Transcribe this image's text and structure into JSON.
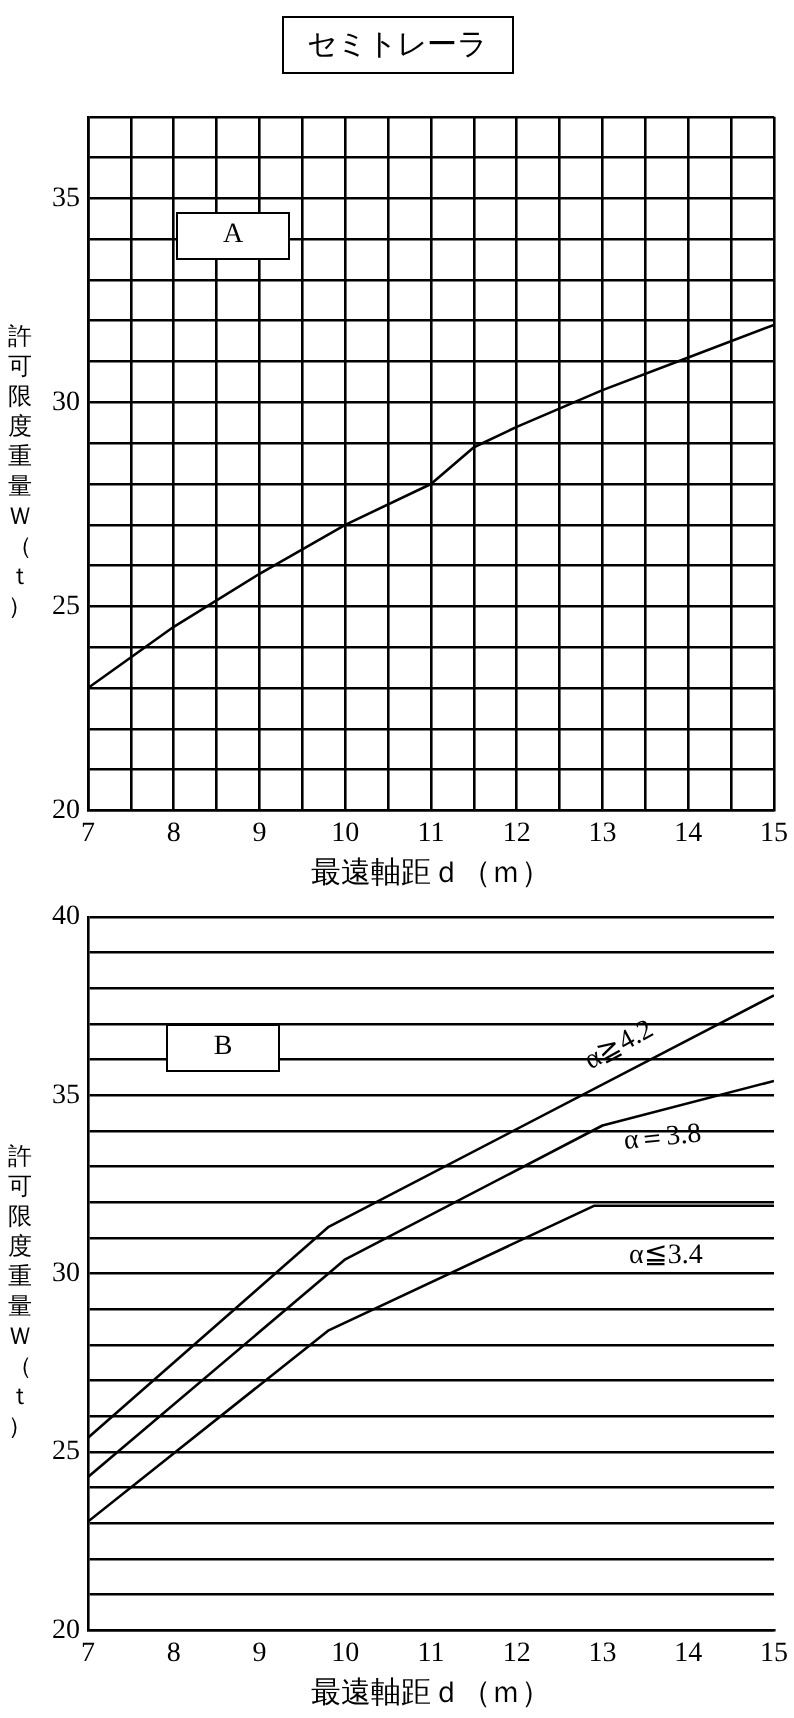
{
  "chart_data": [
    {
      "type": "line",
      "title": "セミトレーラ",
      "xlabel": "最遠軸距ｄ（ｍ）",
      "ylabel": "許可限度重量Ｗ（ｔ）",
      "annotations": [
        "A"
      ],
      "xlim": [
        7,
        15
      ],
      "xticks": [
        7,
        {
          "value": 7.5,
          "label": null
        },
        8,
        {
          "value": 8.5,
          "label": null
        },
        9,
        {
          "value": 9.5,
          "label": null
        },
        10,
        {
          "value": 10.5,
          "label": null
        },
        11,
        {
          "value": 11.5,
          "label": null
        },
        12,
        {
          "value": 12.5,
          "label": null
        },
        13,
        {
          "value": 13.5,
          "label": null
        },
        14,
        {
          "value": 14.5,
          "label": null
        },
        15
      ],
      "ylim": [
        20,
        37
      ],
      "yticks": [
        20,
        {
          "value": 21,
          "label": null
        },
        {
          "value": 22,
          "label": null
        },
        {
          "value": 23,
          "label": null
        },
        {
          "value": 24,
          "label": null
        },
        25,
        {
          "value": 26,
          "label": null
        },
        {
          "value": 27,
          "label": null
        },
        {
          "value": 28,
          "label": null
        },
        {
          "value": 29,
          "label": null
        },
        30,
        {
          "value": 31,
          "label": null
        },
        {
          "value": 32,
          "label": null
        },
        {
          "value": 33,
          "label": null
        },
        {
          "value": 34,
          "label": null
        },
        35,
        {
          "value": 36,
          "label": null
        },
        {
          "value": 37,
          "label": null
        }
      ],
      "grid": true,
      "legend": false,
      "marker": "none",
      "line_style": "solid",
      "series": [
        {
          "color": "#000000",
          "x": [
            7,
            8,
            9,
            10,
            11,
            11.5,
            12,
            13,
            14,
            15
          ],
          "values": [
            23,
            24.5,
            25.8,
            27,
            28,
            28.9,
            29.4,
            30.3,
            31.1,
            31.9
          ]
        }
      ]
    },
    {
      "type": "line",
      "xlabel": "最遠軸距ｄ（ｍ）",
      "ylabel": "許可限度重量Ｗ（ｔ）",
      "annotations": [
        "B"
      ],
      "xlim": [
        7,
        15
      ],
      "xticks": [
        7,
        8,
        9,
        10,
        11,
        12,
        13,
        14,
        15
      ],
      "ylim": [
        20,
        40
      ],
      "yticks": [
        20,
        {
          "value": 21,
          "label": null
        },
        {
          "value": 22,
          "label": null
        },
        {
          "value": 23,
          "label": null
        },
        {
          "value": 24,
          "label": null
        },
        25,
        {
          "value": 26,
          "label": null
        },
        {
          "value": 27,
          "label": null
        },
        {
          "value": 28,
          "label": null
        },
        {
          "value": 29,
          "label": null
        },
        30,
        {
          "value": 31,
          "label": null
        },
        {
          "value": 32,
          "label": null
        },
        {
          "value": 33,
          "label": null
        },
        {
          "value": 34,
          "label": null
        },
        35,
        {
          "value": 36,
          "label": null
        },
        {
          "value": 37,
          "label": null
        },
        {
          "value": 38,
          "label": null
        },
        {
          "value": 39,
          "label": null
        },
        40
      ],
      "grid": "y",
      "legend": false,
      "marker": "none",
      "line_style": "solid",
      "series": [
        {
          "name": "α≧4.2",
          "color": "#000000",
          "x": [
            7,
            9.8,
            15
          ],
          "values": [
            25.4,
            31.3,
            37.8
          ]
        },
        {
          "name": "α＝3.8",
          "color": "#000000",
          "x": [
            7,
            10,
            13,
            15
          ],
          "values": [
            24.3,
            30.4,
            34.15,
            35.4
          ]
        },
        {
          "name": "α≦3.4",
          "color": "#000000",
          "x": [
            7,
            9.8,
            12.9,
            15
          ],
          "values": [
            23.05,
            28.4,
            31.9,
            31.9
          ]
        }
      ]
    }
  ]
}
